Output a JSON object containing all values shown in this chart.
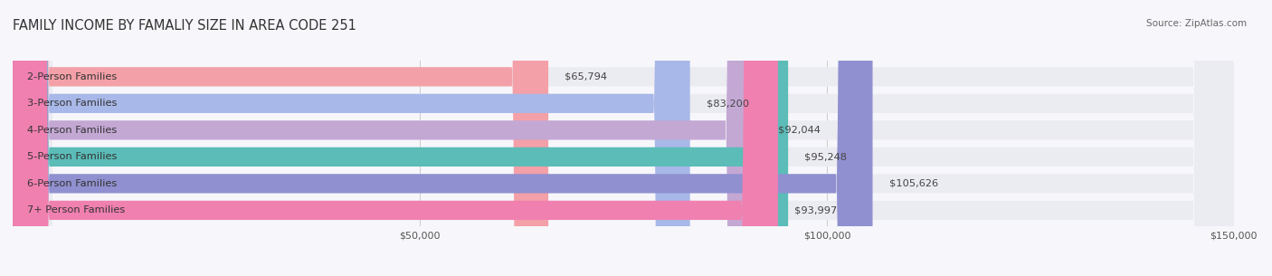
{
  "title": "FAMILY INCOME BY FAMALIY SIZE IN AREA CODE 251",
  "source": "Source: ZipAtlas.com",
  "categories": [
    "2-Person Families",
    "3-Person Families",
    "4-Person Families",
    "5-Person Families",
    "6-Person Families",
    "7+ Person Families"
  ],
  "values": [
    65794,
    83200,
    92044,
    95248,
    105626,
    93997
  ],
  "labels": [
    "$65,794",
    "$83,200",
    "$92,044",
    "$95,248",
    "$105,626",
    "$93,997"
  ],
  "bar_colors": [
    "#f4a0a8",
    "#a8b8e8",
    "#c4a8d4",
    "#5bbcb8",
    "#9090d0",
    "#f080b0"
  ],
  "bar_background": "#ebebf2",
  "xlim": [
    0,
    150000
  ],
  "xticks": [
    50000,
    100000,
    150000
  ],
  "xticklabels": [
    "$50,000",
    "$100,000",
    "$150,000"
  ],
  "title_fontsize": 10.5,
  "label_fontsize": 8.2,
  "source_fontsize": 7.5,
  "bar_height": 0.72,
  "background_color": "#f7f7fb"
}
